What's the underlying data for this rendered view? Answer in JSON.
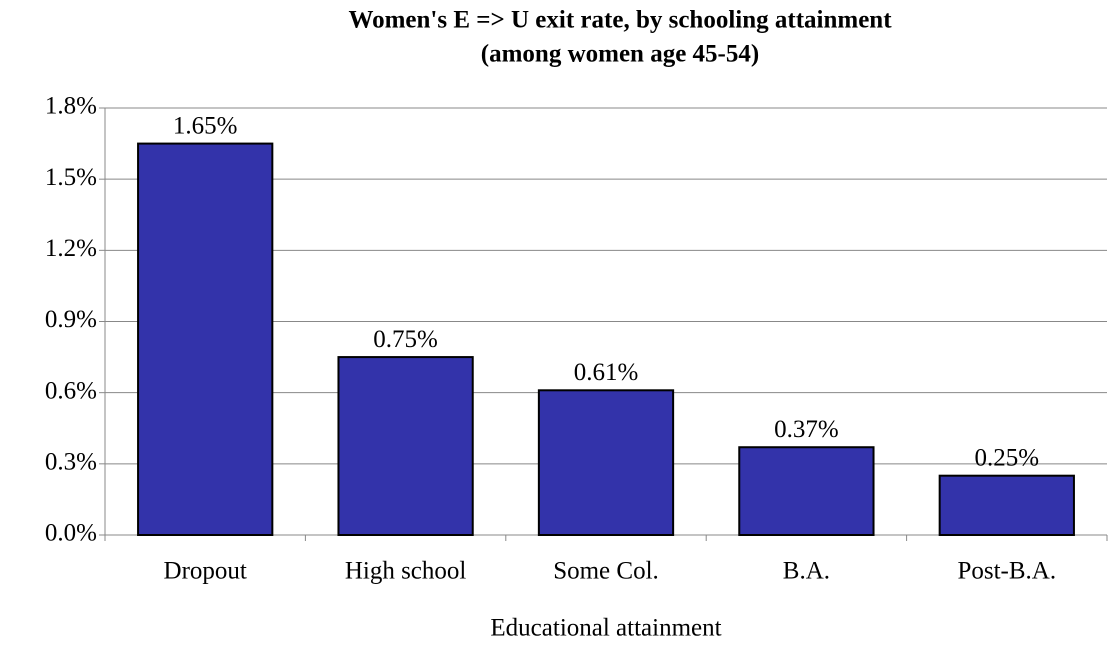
{
  "chart_data": {
    "type": "bar",
    "title": "Women's E => U exit rate, by schooling attainment",
    "subtitle": "(among women age 45-54)",
    "x_label": "Educational attainment",
    "categories": [
      "Dropout",
      "High school",
      "Some Col.",
      "B.A.",
      "Post-B.A."
    ],
    "values": [
      1.65,
      0.75,
      0.61,
      0.37,
      0.25
    ],
    "value_labels": [
      "1.65%",
      "0.75%",
      "0.61%",
      "0.37%",
      "0.25%"
    ],
    "color": "#3333aa",
    "ylim": [
      0,
      1.8
    ],
    "yticks": [
      {
        "value": 0,
        "label": "0.0%"
      },
      {
        "value": 0.3,
        "label": "0.3%"
      },
      {
        "value": 0.6,
        "label": "0.6%"
      },
      {
        "value": 0.9,
        "label": "0.9%"
      },
      {
        "value": 1.2,
        "label": "1.2%"
      },
      {
        "value": 1.5,
        "label": "1.5%"
      },
      {
        "value": 1.8,
        "label": "1.8%"
      }
    ],
    "grid": true
  }
}
